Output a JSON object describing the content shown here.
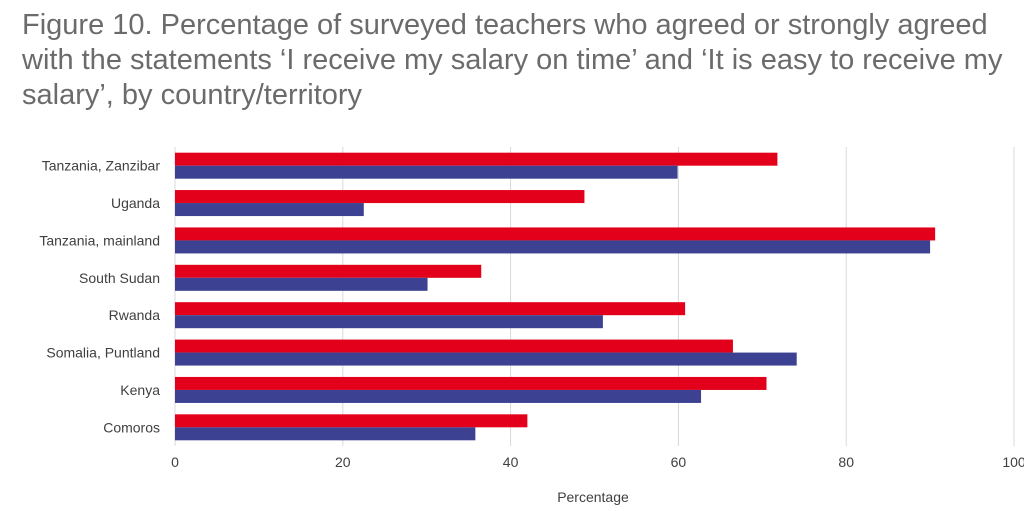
{
  "chart_data": {
    "type": "bar",
    "orientation": "horizontal",
    "title": "Figure 10. Percentage of surveyed teachers who agreed or strongly agreed with the statements ‘I receive my salary on time’ and ‘It is easy to receive my salary’, by country/territory",
    "xlabel": "Percentage",
    "ylabel": "",
    "xlim": [
      0,
      100
    ],
    "xticks": [
      0,
      20,
      40,
      60,
      80,
      100
    ],
    "grid": true,
    "categories": [
      "Tanzania, Zanzibar",
      "Uganda",
      "Tanzania, mainland",
      "South Sudan",
      "Rwanda",
      "Somalia, Puntland",
      "Kenya",
      "Comoros"
    ],
    "series": [
      {
        "name": "I receive my salary on time",
        "color": "#e3001b",
        "values": [
          71.8,
          48.8,
          90.6,
          36.5,
          60.8,
          66.5,
          70.5,
          42.0
        ]
      },
      {
        "name": "It is easy to receive my salary",
        "color": "#3c4192",
        "values": [
          59.9,
          22.5,
          90.0,
          30.1,
          51.0,
          74.1,
          62.7,
          35.8
        ]
      }
    ]
  }
}
